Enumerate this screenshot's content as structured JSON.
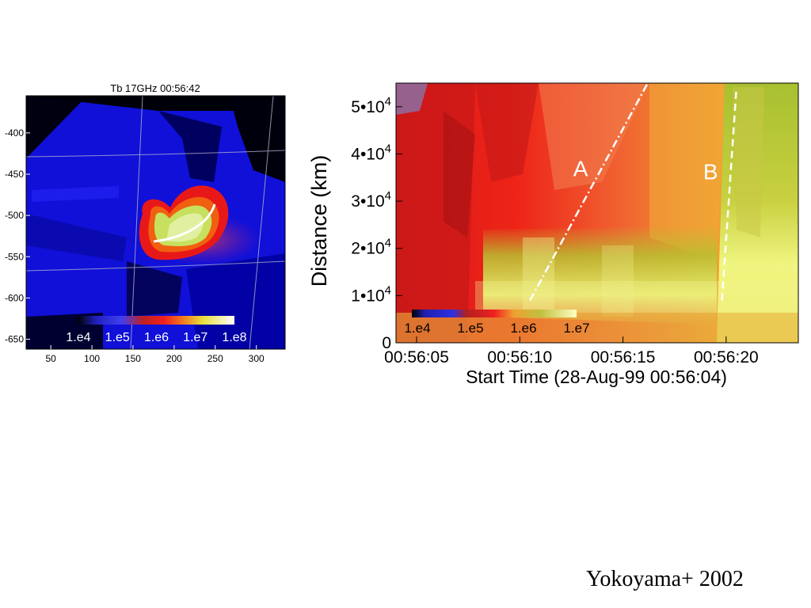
{
  "chart_data": [
    {
      "type": "heatmap",
      "title": "Tb 17GHz 00:56:42",
      "x_ticks": [
        "50",
        "100",
        "150",
        "200",
        "250",
        "300"
      ],
      "x_tick_values": [
        50,
        100,
        150,
        200,
        250,
        300
      ],
      "y_ticks": [
        "-400",
        "-450",
        "-500",
        "-550",
        "-600",
        "-650"
      ],
      "y_tick_values": [
        -400,
        -450,
        -500,
        -550,
        -600,
        -650
      ],
      "xlim": [
        20,
        335
      ],
      "ylim": [
        -662,
        -355
      ],
      "colorbar": {
        "labels": [
          "1.e4",
          "1.e5",
          "1.e6",
          "1.e7",
          "1.e8"
        ]
      },
      "colors": {
        "background": "#1010e0",
        "source": "#e81010",
        "core": "#d8f080",
        "loop_line": "#ffffff"
      }
    },
    {
      "type": "heatmap",
      "xlabel": "Start Time (28-Aug-99 00:56:04)",
      "ylabel": "Distance (km)",
      "x_ticks": [
        "00:56:05",
        "00:56:10",
        "00:56:15",
        "00:56:20"
      ],
      "x_tick_values": [
        1,
        6,
        11,
        16
      ],
      "xlim": [
        0,
        19.5
      ],
      "y_ticks": [
        {
          "mant": "0",
          "exp": ""
        },
        {
          "mant": "1•10",
          "exp": "4"
        },
        {
          "mant": "2•10",
          "exp": "4"
        },
        {
          "mant": "3•10",
          "exp": "4"
        },
        {
          "mant": "4•10",
          "exp": "4"
        },
        {
          "mant": "5•10",
          "exp": "4"
        }
      ],
      "y_tick_values": [
        0,
        10000,
        20000,
        30000,
        40000,
        50000
      ],
      "ylim": [
        0,
        55000
      ],
      "colorbar": {
        "labels": [
          "1.e4",
          "1.e5",
          "1.e6",
          "1.e7"
        ]
      },
      "annotations": [
        {
          "label": "A",
          "from": [
            6.5,
            9000
          ],
          "to": [
            12.2,
            55000
          ],
          "style": "dash-dot"
        },
        {
          "label": "B",
          "from": [
            15.8,
            9000
          ],
          "to": [
            16.5,
            54000
          ],
          "style": "dashed"
        }
      ],
      "colors": {
        "red": "#e81818",
        "orange": "#f0a030",
        "green": "#b0c030",
        "yellow": "#ecf070"
      }
    }
  ],
  "credit": "Yokoyama+ 2002"
}
